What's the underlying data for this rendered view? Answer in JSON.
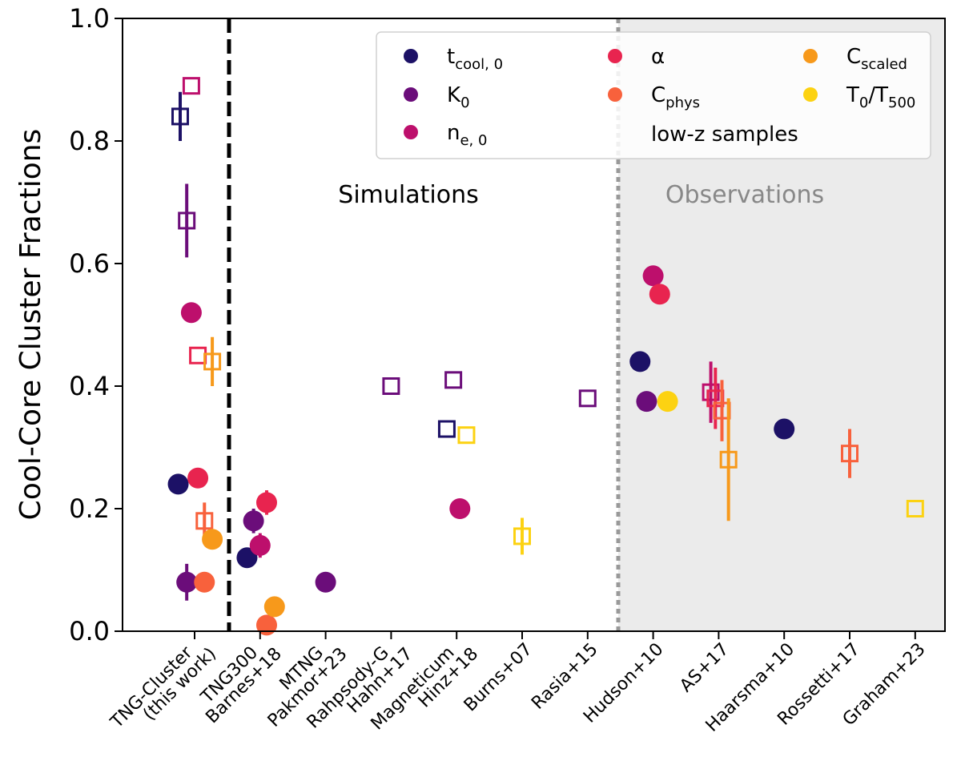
{
  "chart_data": {
    "type": "scatter",
    "ylabel": "Cool-Core Cluster Fractions",
    "ylim": [
      0.0,
      1.0
    ],
    "yticks": [
      {
        "value": 0.0,
        "label": "0.0"
      },
      {
        "value": 0.2,
        "label": "0.2"
      },
      {
        "value": 0.4,
        "label": "0.4"
      },
      {
        "value": 0.6,
        "label": "0.6"
      },
      {
        "value": 0.8,
        "label": "0.8"
      },
      {
        "value": 1.0,
        "label": "1.0"
      }
    ],
    "categories": [
      {
        "label": "TNG-Cluster",
        "label2": "(this work)"
      },
      {
        "label": "TNG300",
        "label2": "Barnes+18"
      },
      {
        "label": "MTNG",
        "label2": "Pakmor+23"
      },
      {
        "label": "Rahpsody-G",
        "label2": "Hahn+17"
      },
      {
        "label": "Magneticum",
        "label2": "Hinz+18"
      },
      {
        "label": "Burns+07",
        "label2": ""
      },
      {
        "label": "Rasia+15",
        "label2": ""
      },
      {
        "label": "Hudson+10",
        "label2": ""
      },
      {
        "label": "AS+17",
        "label2": ""
      },
      {
        "label": "Haarsma+10",
        "label2": ""
      },
      {
        "label": "Rossetti+17",
        "label2": ""
      },
      {
        "label": "Graham+23",
        "label2": ""
      }
    ],
    "regions": {
      "simulations_label": "Simulations",
      "observations_label": "Observations"
    },
    "legend": {
      "placement": "top-right",
      "note": "low-z samples",
      "items": [
        {
          "key": "tcool",
          "base": "t",
          "sub": "cool, 0",
          "color": "#1c1166"
        },
        {
          "key": "K0",
          "base": "K",
          "sub": "0",
          "color": "#6b0d7a"
        },
        {
          "key": "ne0",
          "base": "n",
          "sub": "e, 0",
          "color": "#bd0f6c"
        },
        {
          "key": "alpha",
          "base": "α",
          "sub": "",
          "color": "#e8244f"
        },
        {
          "key": "Cphys",
          "base": "C",
          "sub": "phys",
          "color": "#f8613c"
        },
        {
          "key": "Cscaled",
          "base": "C",
          "sub": "scaled",
          "color": "#f7991b"
        },
        {
          "key": "T0",
          "base": "T",
          "sub": "0",
          "base2": "/T",
          "sub2": "500",
          "color": "#fcd212"
        }
      ]
    },
    "series": [
      {
        "category": 0,
        "offset": -0.25,
        "metric": "tcool",
        "marker": "circle",
        "value": 0.24
      },
      {
        "category": 0,
        "offset": -0.22,
        "metric": "tcool",
        "marker": "square",
        "value": 0.84,
        "err": 0.04
      },
      {
        "category": 0,
        "offset": -0.12,
        "metric": "K0",
        "marker": "circle",
        "value": 0.08,
        "err": 0.03
      },
      {
        "category": 0,
        "offset": -0.12,
        "metric": "K0",
        "marker": "square",
        "value": 0.67,
        "err": 0.06
      },
      {
        "category": 0,
        "offset": -0.05,
        "metric": "ne0",
        "marker": "circle",
        "value": 0.52
      },
      {
        "category": 0,
        "offset": -0.05,
        "metric": "ne0",
        "marker": "square",
        "value": 0.89
      },
      {
        "category": 0,
        "offset": 0.05,
        "metric": "alpha",
        "marker": "circle",
        "value": 0.25
      },
      {
        "category": 0,
        "offset": 0.05,
        "metric": "alpha",
        "marker": "square",
        "value": 0.45
      },
      {
        "category": 0,
        "offset": 0.15,
        "metric": "Cphys",
        "marker": "circle",
        "value": 0.08
      },
      {
        "category": 0,
        "offset": 0.15,
        "metric": "Cphys",
        "marker": "square",
        "value": 0.18,
        "err": 0.03
      },
      {
        "category": 0,
        "offset": 0.27,
        "metric": "Cscaled",
        "marker": "circle",
        "value": 0.15
      },
      {
        "category": 0,
        "offset": 0.27,
        "metric": "Cscaled",
        "marker": "square",
        "value": 0.44,
        "err": 0.04
      },
      {
        "category": 1,
        "offset": -0.2,
        "metric": "tcool",
        "marker": "circle",
        "value": 0.12
      },
      {
        "category": 1,
        "offset": -0.1,
        "metric": "K0",
        "marker": "circle",
        "value": 0.18,
        "err": 0.02
      },
      {
        "category": 1,
        "offset": 0.0,
        "metric": "ne0",
        "marker": "circle",
        "value": 0.14,
        "err": 0.02
      },
      {
        "category": 1,
        "offset": 0.1,
        "metric": "alpha",
        "marker": "circle",
        "value": 0.21,
        "err": 0.02
      },
      {
        "category": 1,
        "offset": 0.1,
        "metric": "Cphys",
        "marker": "circle",
        "value": 0.01
      },
      {
        "category": 1,
        "offset": 0.22,
        "metric": "Cscaled",
        "marker": "circle",
        "value": 0.04
      },
      {
        "category": 2,
        "offset": 0.0,
        "metric": "K0",
        "marker": "circle",
        "value": 0.08
      },
      {
        "category": 3,
        "offset": 0.0,
        "metric": "K0",
        "marker": "square",
        "value": 0.4
      },
      {
        "category": 4,
        "offset": -0.15,
        "metric": "tcool",
        "marker": "square",
        "value": 0.33
      },
      {
        "category": 4,
        "offset": -0.05,
        "metric": "K0",
        "marker": "square",
        "value": 0.41
      },
      {
        "category": 4,
        "offset": 0.05,
        "metric": "ne0",
        "marker": "circle",
        "value": 0.2
      },
      {
        "category": 4,
        "offset": 0.15,
        "metric": "T0",
        "marker": "square",
        "value": 0.32
      },
      {
        "category": 5,
        "offset": 0.0,
        "metric": "T0",
        "marker": "square",
        "value": 0.155,
        "err": 0.03
      },
      {
        "category": 6,
        "offset": 0.0,
        "metric": "K0",
        "marker": "square",
        "value": 0.38
      },
      {
        "category": 7,
        "offset": -0.2,
        "metric": "tcool",
        "marker": "circle",
        "value": 0.44
      },
      {
        "category": 7,
        "offset": -0.1,
        "metric": "K0",
        "marker": "circle",
        "value": 0.375
      },
      {
        "category": 7,
        "offset": 0.0,
        "metric": "ne0",
        "marker": "circle",
        "value": 0.58
      },
      {
        "category": 7,
        "offset": 0.1,
        "metric": "alpha",
        "marker": "circle",
        "value": 0.55
      },
      {
        "category": 7,
        "offset": 0.22,
        "metric": "T0",
        "marker": "circle",
        "value": 0.375
      },
      {
        "category": 8,
        "offset": -0.12,
        "metric": "ne0",
        "marker": "square",
        "value": 0.39,
        "err": 0.05
      },
      {
        "category": 8,
        "offset": -0.05,
        "metric": "alpha",
        "marker": "square",
        "value": 0.38,
        "err": 0.05
      },
      {
        "category": 8,
        "offset": 0.05,
        "metric": "Cphys",
        "marker": "square",
        "value": 0.36,
        "err": 0.05
      },
      {
        "category": 8,
        "offset": 0.15,
        "metric": "Cscaled",
        "marker": "square",
        "value": 0.28,
        "err": 0.1
      }
    ],
    "series_extra": [
      {
        "category": 9,
        "offset": 0.0,
        "metric": "tcool",
        "marker": "circle",
        "value": 0.33
      },
      {
        "category": 10,
        "offset": 0.0,
        "metric": "Cphys",
        "marker": "square",
        "value": 0.29,
        "err": 0.04
      },
      {
        "category": 11,
        "offset": 0.0,
        "metric": "T0",
        "marker": "square",
        "value": 0.2
      }
    ]
  }
}
